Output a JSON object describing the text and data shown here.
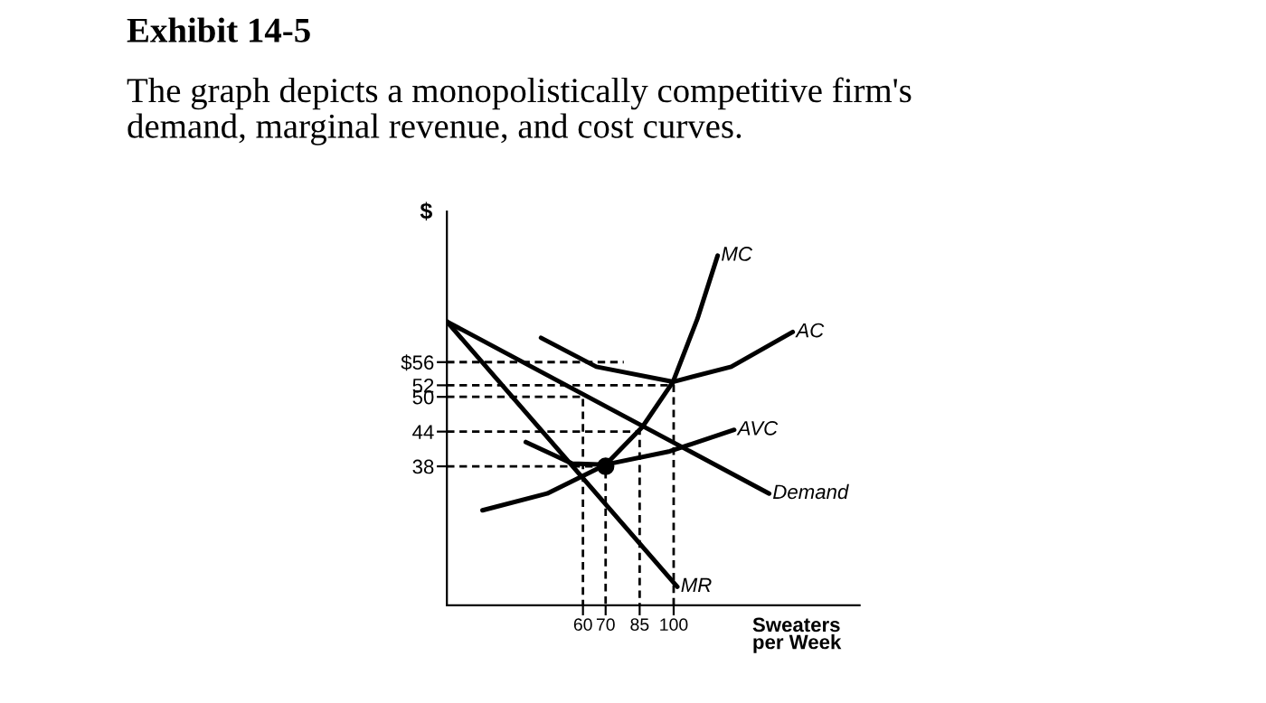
{
  "chart_data": {
    "type": "line",
    "title": "Exhibit 14-5",
    "subtitle": "The graph depicts a monopolistically competitive firm's\ndemand, marginal revenue, and cost curves.",
    "ylabel": "$",
    "xlabel": "Sweaters\nper Week",
    "xlim": [
      0,
      182
    ],
    "ylim": [
      14,
      82
    ],
    "xticks": [
      60,
      70,
      85,
      100
    ],
    "yticks": [
      {
        "value": 56,
        "label": "$56"
      },
      52,
      50,
      44,
      38
    ],
    "grid": false,
    "legend": false,
    "marker": "none",
    "line_style": "solid",
    "series": [
      {
        "name": "MC",
        "color": "#000000",
        "x": [
          15.7,
          44.2,
          70,
          86.2,
          99.7,
          110.5,
          119.4
        ],
        "values": [
          30.4,
          33.3,
          38.3,
          44.8,
          52.6,
          63.5,
          74.4
        ]
      },
      {
        "name": "AC",
        "color": "#000000",
        "x": [
          41.5,
          65.9,
          99.7,
          125.4,
          152.5
        ],
        "values": [
          60.2,
          55.2,
          52.6,
          55.2,
          61.2
        ]
      },
      {
        "name": "AVC",
        "color": "#000000",
        "x": [
          34.8,
          55.1,
          70,
          98.3,
          126.7
        ],
        "values": [
          42.2,
          38.5,
          38.3,
          40.6,
          44.3
        ]
      },
      {
        "name": "Demand",
        "color": "#000000",
        "x": [
          0,
          142.1
        ],
        "values": [
          63,
          33.3
        ]
      },
      {
        "name": "MR",
        "color": "#000000",
        "x": [
          0,
          101.6
        ],
        "values": [
          63,
          17.2
        ]
      },
      {
        "type": "scatter",
        "color": "#000000",
        "marker": "circle",
        "x": [
          70
        ],
        "values": [
          38
        ]
      },
      {
        "color": "#000000",
        "line_style": "dashed",
        "x": [
          0,
          78
        ],
        "values": [
          56,
          56
        ]
      },
      {
        "color": "#000000",
        "line_style": "dashed",
        "x": [
          0,
          100,
          100
        ],
        "values": [
          52,
          52,
          14
        ]
      },
      {
        "color": "#000000",
        "line_style": "dashed",
        "x": [
          0,
          60,
          60
        ],
        "values": [
          50,
          50,
          14
        ]
      },
      {
        "color": "#000000",
        "line_style": "dashed",
        "x": [
          0,
          85,
          85
        ],
        "values": [
          44,
          44,
          14
        ]
      },
      {
        "color": "#000000",
        "line_style": "dashed",
        "x": [
          0,
          70,
          70
        ],
        "values": [
          38,
          38,
          14
        ]
      }
    ]
  }
}
